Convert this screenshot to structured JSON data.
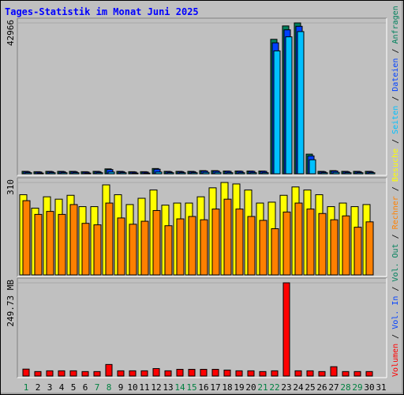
{
  "title": "Tages-Statistik im Monat Juni 2025",
  "legend_separator": "/",
  "chart_data": [
    {
      "type": "bar",
      "ylim": [
        0,
        42966
      ],
      "yticks": [
        42966
      ],
      "series": [
        {
          "name": "Anfragen",
          "color": "#00805c",
          "values": [
            700,
            600,
            700,
            700,
            700,
            600,
            700,
            1400,
            700,
            600,
            600,
            1500,
            700,
            700,
            700,
            900,
            900,
            800,
            800,
            800,
            800,
            38300,
            42100,
            42966,
            5600,
            700,
            900,
            700,
            700,
            700,
            null
          ]
        },
        {
          "name": "Dateien",
          "color": "#0040ff",
          "values": [
            600,
            500,
            600,
            600,
            600,
            500,
            600,
            1200,
            600,
            500,
            500,
            1300,
            600,
            600,
            600,
            800,
            800,
            700,
            700,
            700,
            700,
            37300,
            41000,
            42000,
            5100,
            600,
            800,
            600,
            600,
            600,
            null
          ]
        },
        {
          "name": "Seiten",
          "color": "#00c0ff",
          "values": [
            300,
            200,
            300,
            300,
            300,
            200,
            300,
            500,
            300,
            200,
            200,
            500,
            300,
            300,
            300,
            400,
            400,
            300,
            300,
            300,
            300,
            35000,
            39000,
            40500,
            4000,
            300,
            400,
            300,
            300,
            300,
            null
          ]
        }
      ]
    },
    {
      "type": "bar",
      "ylim": [
        0,
        310
      ],
      "yticks": [
        310
      ],
      "series": [
        {
          "name": "Besuche",
          "color": "#ffff00",
          "values": [
            269,
            224,
            262,
            254,
            267,
            229,
            229,
            302,
            269,
            236,
            257,
            285,
            234,
            241,
            241,
            262,
            292,
            310,
            305,
            285,
            241,
            244,
            267,
            295,
            285,
            269,
            229,
            241,
            229,
            236,
            null
          ]
        },
        {
          "name": "Rechner",
          "color": "#ff8000",
          "values": [
            249,
            203,
            213,
            203,
            236,
            173,
            168,
            241,
            191,
            170,
            180,
            216,
            165,
            188,
            196,
            185,
            221,
            254,
            221,
            196,
            183,
            155,
            211,
            241,
            221,
            206,
            185,
            198,
            160,
            178,
            null
          ]
        }
      ]
    },
    {
      "type": "bar",
      "ylim": [
        0,
        249.73
      ],
      "yticks": [
        {
          "value": 249.73,
          "label": "249.73 MB"
        }
      ],
      "categories": [
        "1",
        "2",
        "3",
        "4",
        "5",
        "6",
        "7",
        "8",
        "9",
        "10",
        "11",
        "12",
        "13",
        "14",
        "15",
        "16",
        "17",
        "18",
        "19",
        "20",
        "21",
        "22",
        "23",
        "24",
        "25",
        "26",
        "27",
        "28",
        "29",
        "30",
        "31"
      ],
      "category_colors": [
        "#008040",
        "#000000",
        "#000000",
        "#000000",
        "#000000",
        "#000000",
        "#008040",
        "#008040",
        "#000000",
        "#000000",
        "#000000",
        "#000000",
        "#000000",
        "#008040",
        "#008040",
        "#000000",
        "#000000",
        "#000000",
        "#000000",
        "#000000",
        "#008040",
        "#008040",
        "#000000",
        "#000000",
        "#000000",
        "#000000",
        "#000000",
        "#008040",
        "#008040",
        "#000000",
        "#000000"
      ],
      "series": [
        {
          "name": "Volumen",
          "color": "#ff0000",
          "values": [
            18.6,
            12,
            14,
            14,
            14,
            12,
            12,
            31,
            14,
            14,
            14,
            20,
            14,
            18,
            18,
            18,
            18,
            16,
            14,
            14,
            12,
            14,
            249.73,
            14,
            14,
            12,
            25,
            12,
            12,
            12,
            null
          ]
        },
        {
          "name": "Vol. In",
          "color": "#0040ff",
          "values": [
            null,
            null,
            null,
            null,
            null,
            null,
            null,
            null,
            null,
            null,
            null,
            null,
            null,
            null,
            null,
            null,
            null,
            null,
            null,
            null,
            null,
            null,
            null,
            null,
            null,
            null,
            null,
            null,
            null,
            null,
            null
          ]
        },
        {
          "name": "Vol. Out",
          "color": "#00805c",
          "values": [
            null,
            null,
            null,
            null,
            null,
            null,
            null,
            null,
            null,
            null,
            null,
            null,
            null,
            null,
            null,
            null,
            null,
            null,
            null,
            null,
            null,
            null,
            null,
            null,
            null,
            null,
            null,
            null,
            null,
            null,
            null
          ]
        }
      ]
    }
  ]
}
